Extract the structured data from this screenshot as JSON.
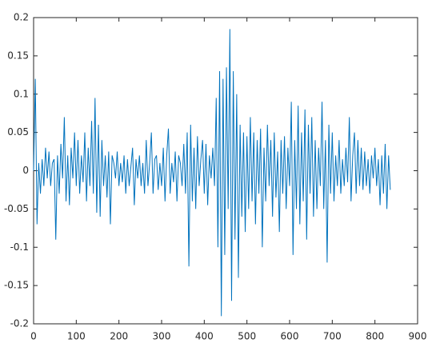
{
  "chart_data": {
    "type": "line",
    "color": "#0072bd",
    "x": [
      0,
      4,
      8,
      12,
      16,
      20,
      24,
      28,
      32,
      36,
      40,
      44,
      48,
      52,
      56,
      60,
      64,
      68,
      72,
      76,
      80,
      84,
      88,
      92,
      96,
      100,
      104,
      108,
      112,
      116,
      120,
      124,
      128,
      132,
      136,
      140,
      144,
      148,
      152,
      156,
      160,
      164,
      168,
      172,
      176,
      180,
      184,
      188,
      192,
      196,
      200,
      204,
      208,
      212,
      216,
      220,
      224,
      228,
      232,
      236,
      240,
      244,
      248,
      252,
      256,
      260,
      264,
      268,
      272,
      276,
      280,
      284,
      288,
      292,
      296,
      300,
      304,
      308,
      312,
      316,
      320,
      324,
      328,
      332,
      336,
      340,
      344,
      348,
      352,
      356,
      360,
      364,
      368,
      372,
      376,
      380,
      384,
      388,
      392,
      396,
      400,
      404,
      408,
      412,
      416,
      420,
      424,
      428,
      432,
      436,
      440,
      444,
      448,
      452,
      456,
      460,
      464,
      468,
      472,
      476,
      480,
      484,
      488,
      492,
      496,
      500,
      504,
      508,
      512,
      516,
      520,
      524,
      528,
      532,
      536,
      540,
      544,
      548,
      552,
      556,
      560,
      564,
      568,
      572,
      576,
      580,
      584,
      588,
      592,
      596,
      600,
      604,
      608,
      612,
      616,
      620,
      624,
      628,
      632,
      636,
      640,
      644,
      648,
      652,
      656,
      660,
      664,
      668,
      672,
      676,
      680,
      684,
      688,
      692,
      696,
      700,
      704,
      708,
      712,
      716,
      720,
      724,
      728,
      732,
      736,
      740,
      744,
      748,
      752,
      756,
      760,
      764,
      768,
      772,
      776,
      780,
      784,
      788,
      792,
      796,
      800,
      804,
      808,
      812,
      816,
      820,
      824,
      828,
      832,
      836
    ],
    "values": [
      0,
      0.12,
      -0.07,
      0.01,
      -0.03,
      0.015,
      -0.02,
      0.03,
      -0.01,
      0.025,
      -0.02,
      0.01,
      0.015,
      -0.09,
      0.02,
      -0.03,
      0.035,
      -0.01,
      0.07,
      -0.04,
      0.02,
      -0.045,
      0.03,
      -0.01,
      0.05,
      -0.02,
      0.04,
      -0.03,
      0.02,
      -0.015,
      0.05,
      -0.04,
      0.03,
      -0.02,
      0.065,
      -0.03,
      0.095,
      -0.055,
      0.06,
      -0.06,
      0.04,
      -0.02,
      0.02,
      -0.035,
      0.025,
      -0.07,
      0.02,
      0.01,
      -0.01,
      0.025,
      -0.02,
      0.01,
      -0.015,
      0.02,
      -0.03,
      0.015,
      -0.02,
      0.005,
      0.03,
      -0.045,
      0.015,
      -0.01,
      0.02,
      -0.02,
      0.01,
      -0.03,
      0.04,
      -0.02,
      0.01,
      0.05,
      -0.03,
      0.015,
      0.02,
      -0.025,
      0.01,
      -0.02,
      0.03,
      -0.04,
      0.02,
      0.055,
      -0.03,
      0.01,
      -0.015,
      0.025,
      -0.04,
      0.02,
      0.01,
      -0.02,
      0.035,
      -0.03,
      0.05,
      -0.125,
      0.06,
      -0.04,
      0.03,
      -0.05,
      0.045,
      -0.02,
      0.015,
      0.04,
      -0.03,
      0.035,
      -0.045,
      0.02,
      -0.01,
      0.03,
      -0.02,
      0.095,
      -0.1,
      0.13,
      -0.19,
      0.12,
      -0.11,
      0.135,
      -0.05,
      0.185,
      -0.17,
      0.13,
      -0.09,
      0.1,
      -0.14,
      0.06,
      -0.06,
      0.05,
      -0.08,
      0.045,
      -0.05,
      0.07,
      -0.04,
      0.05,
      -0.07,
      0.04,
      -0.03,
      0.055,
      -0.1,
      0.03,
      -0.04,
      0.06,
      -0.02,
      0.04,
      -0.06,
      0.05,
      -0.035,
      0.025,
      -0.08,
      0.04,
      -0.03,
      0.045,
      -0.05,
      0.03,
      -0.02,
      0.09,
      -0.11,
      0.04,
      -0.05,
      0.085,
      -0.07,
      0.05,
      -0.04,
      0.08,
      -0.09,
      0.06,
      -0.03,
      0.07,
      -0.06,
      0.04,
      -0.05,
      0.03,
      -0.02,
      0.09,
      -0.05,
      0.04,
      -0.12,
      0.06,
      -0.03,
      0.05,
      -0.04,
      0.02,
      -0.02,
      0.04,
      -0.03,
      0.015,
      -0.02,
      0.03,
      -0.015,
      0.07,
      -0.04,
      0.02,
      0.05,
      -0.03,
      0.04,
      -0.02,
      0.03,
      -0.025,
      0.025,
      -0.02,
      0.015,
      -0.03,
      0.02,
      -0.01,
      0.03,
      -0.02,
      0.015,
      -0.045,
      0.02,
      -0.03,
      0.035,
      -0.05,
      0.02,
      -0.025
    ],
    "xlim": [
      0,
      900
    ],
    "xticks": [
      0,
      100,
      200,
      300,
      400,
      500,
      600,
      700,
      800,
      900
    ],
    "ylim": [
      -0.2,
      0.2
    ],
    "yticks": [
      -0.2,
      -0.15,
      -0.1,
      -0.05,
      0,
      0.05,
      0.1,
      0.15,
      0.2
    ]
  }
}
